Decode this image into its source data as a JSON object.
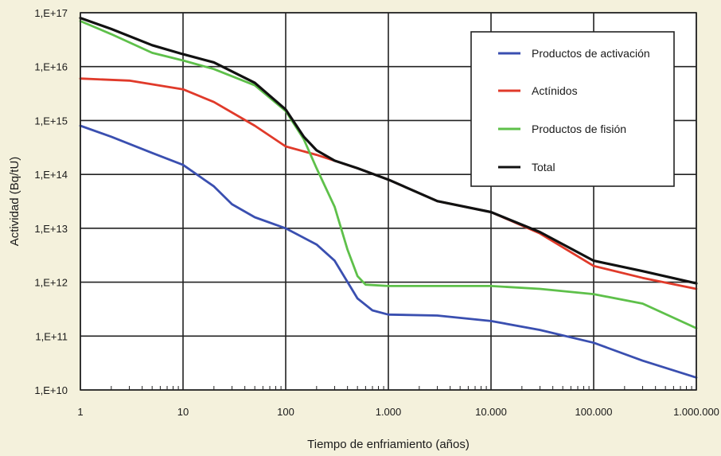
{
  "chart_data": {
    "type": "line",
    "title": "",
    "xlabel": "Tiempo de enfriamiento (años)",
    "ylabel": "Actividad (Bq/tU)",
    "x_scale": "log",
    "y_scale": "log",
    "xlim": [
      1,
      1000000
    ],
    "ylim": [
      10000000000.0,
      1e+17
    ],
    "grid": true,
    "legend_position": "top-right",
    "x_ticks": [
      1,
      10,
      100,
      1000,
      10000,
      100000,
      1000000
    ],
    "x_tick_labels": [
      "1",
      "10",
      "100",
      "1.000",
      "10.000",
      "100.000",
      "1.000.000"
    ],
    "y_ticks": [
      10000000000.0,
      100000000000.0,
      1000000000000.0,
      10000000000000.0,
      100000000000000.0,
      1000000000000000.0,
      1e+16,
      1e+17
    ],
    "y_tick_labels": [
      "1,E+10",
      "1,E+11",
      "1,E+12",
      "1,E+13",
      "1,E+14",
      "1,E+15",
      "1,E+16",
      "1,E+17"
    ],
    "series": [
      {
        "name": "Productos de activación",
        "color": "#3a4fb0",
        "x": [
          1,
          2,
          5,
          10,
          20,
          30,
          50,
          100,
          200,
          300,
          500,
          700,
          1000,
          3000,
          10000,
          30000,
          100000,
          300000,
          1000000
        ],
        "y": [
          800000000000000.0,
          500000000000000.0,
          250000000000000.0,
          150000000000000.0,
          60000000000000.0,
          28000000000000.0,
          16000000000000.0,
          10000000000000.0,
          5000000000000.0,
          2500000000000.0,
          500000000000.0,
          300000000000.0,
          250000000000.0,
          240000000000.0,
          190000000000.0,
          130000000000.0,
          75000000000.0,
          35000000000.0,
          17000000000.0
        ]
      },
      {
        "name": "Actínidos",
        "color": "#e03a2a",
        "x": [
          1,
          3,
          10,
          20,
          50,
          100,
          200,
          500,
          1000,
          3000,
          10000,
          30000,
          100000,
          300000,
          1000000
        ],
        "y": [
          6000000000000000.0,
          5500000000000000.0,
          3800000000000000.0,
          2200000000000000.0,
          800000000000000.0,
          330000000000000.0,
          230000000000000.0,
          130000000000000.0,
          80000000000000.0,
          32000000000000.0,
          20000000000000.0,
          8000000000000.0,
          2000000000000.0,
          1200000000000.0,
          750000000000.0
        ]
      },
      {
        "name": "Productos de fisión",
        "color": "#5ec04a",
        "x": [
          1,
          2,
          5,
          10,
          20,
          50,
          100,
          150,
          200,
          300,
          400,
          500,
          600,
          1000,
          3000,
          10000,
          30000,
          100000,
          300000,
          1000000
        ],
        "y": [
          7e+16,
          4e+16,
          1.8e+16,
          1.3e+16,
          9000000000000000.0,
          4500000000000000.0,
          1500000000000000.0,
          450000000000000.0,
          130000000000000.0,
          25000000000000.0,
          4000000000000.0,
          1300000000000.0,
          900000000000.0,
          850000000000.0,
          850000000000.0,
          850000000000.0,
          750000000000.0,
          600000000000.0,
          400000000000.0,
          140000000000.0
        ]
      },
      {
        "name": "Total",
        "color": "#111111",
        "x": [
          1,
          2,
          5,
          10,
          20,
          50,
          100,
          150,
          200,
          300,
          500,
          1000,
          3000,
          10000,
          30000,
          100000,
          300000,
          1000000
        ],
        "y": [
          8e+16,
          5e+16,
          2.5e+16,
          1.7e+16,
          1.2e+16,
          5000000000000000.0,
          1600000000000000.0,
          500000000000000.0,
          280000000000000.0,
          180000000000000.0,
          130000000000000.0,
          80000000000000.0,
          32000000000000.0,
          20000000000000.0,
          8500000000000.0,
          2500000000000.0,
          1600000000000.0,
          950000000000.0
        ]
      }
    ]
  }
}
